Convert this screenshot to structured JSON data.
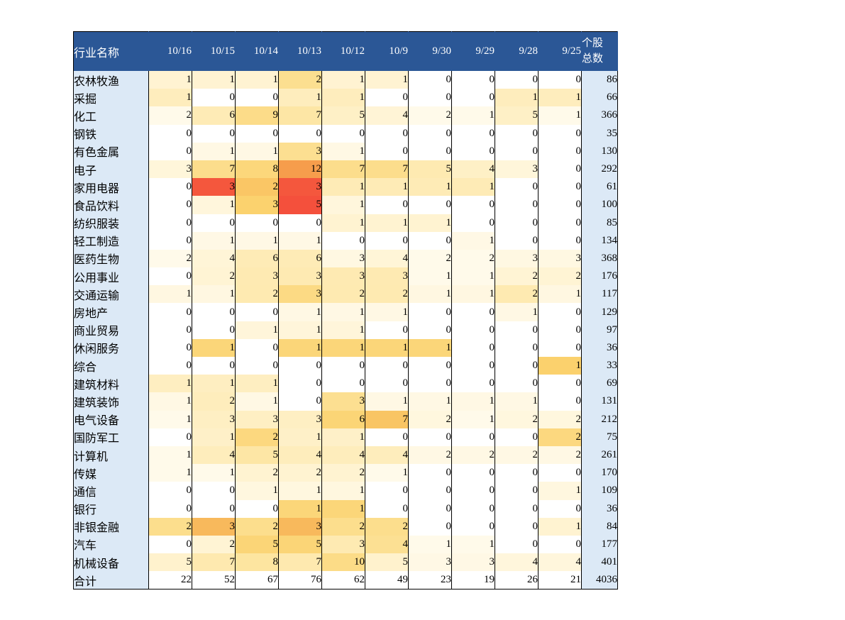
{
  "chart_data": {
    "type": "heatmap",
    "title": "",
    "header": {
      "industry": "行业名称",
      "dates": [
        "10/16",
        "10/15",
        "10/14",
        "10/13",
        "10/12",
        "10/9",
        "9/30",
        "9/29",
        "9/28",
        "9/25"
      ],
      "stock_total_line1": "个股",
      "stock_total_line2": "总数"
    },
    "rows": [
      {
        "name": "农林牧渔",
        "values": [
          1,
          1,
          1,
          2,
          1,
          1,
          0,
          0,
          0,
          0
        ],
        "total": 86
      },
      {
        "name": "采掘",
        "values": [
          1,
          0,
          0,
          1,
          1,
          0,
          0,
          0,
          1,
          1
        ],
        "total": 66
      },
      {
        "name": "化工",
        "values": [
          2,
          6,
          9,
          7,
          5,
          4,
          2,
          1,
          5,
          1
        ],
        "total": 366
      },
      {
        "name": "钢铁",
        "values": [
          0,
          0,
          0,
          0,
          0,
          0,
          0,
          0,
          0,
          0
        ],
        "total": 35
      },
      {
        "name": "有色金属",
        "values": [
          0,
          1,
          1,
          3,
          1,
          0,
          0,
          0,
          0,
          0
        ],
        "total": 130
      },
      {
        "name": "电子",
        "values": [
          3,
          7,
          8,
          12,
          7,
          7,
          5,
          4,
          3,
          0
        ],
        "total": 292
      },
      {
        "name": "家用电器",
        "values": [
          0,
          3,
          2,
          3,
          1,
          1,
          1,
          1,
          0,
          0
        ],
        "total": 61
      },
      {
        "name": "食品饮料",
        "values": [
          0,
          1,
          3,
          5,
          1,
          0,
          0,
          0,
          0,
          0
        ],
        "total": 100
      },
      {
        "name": "纺织服装",
        "values": [
          0,
          0,
          0,
          0,
          1,
          1,
          1,
          0,
          0,
          0
        ],
        "total": 85
      },
      {
        "name": "轻工制造",
        "values": [
          0,
          1,
          1,
          1,
          0,
          0,
          0,
          1,
          0,
          0
        ],
        "total": 134
      },
      {
        "name": "医药生物",
        "values": [
          2,
          4,
          6,
          6,
          3,
          4,
          2,
          2,
          3,
          3
        ],
        "total": 368
      },
      {
        "name": "公用事业",
        "values": [
          0,
          2,
          3,
          3,
          3,
          3,
          1,
          1,
          2,
          2
        ],
        "total": 176
      },
      {
        "name": "交通运输",
        "values": [
          1,
          1,
          2,
          3,
          2,
          2,
          1,
          1,
          2,
          1
        ],
        "total": 117
      },
      {
        "name": "房地产",
        "values": [
          0,
          0,
          0,
          1,
          1,
          1,
          0,
          0,
          1,
          0
        ],
        "total": 129
      },
      {
        "name": "商业贸易",
        "values": [
          0,
          0,
          1,
          1,
          1,
          0,
          0,
          0,
          0,
          0
        ],
        "total": 97
      },
      {
        "name": "休闲服务",
        "values": [
          0,
          1,
          0,
          1,
          1,
          1,
          1,
          0,
          0,
          0
        ],
        "total": 36
      },
      {
        "name": "综合",
        "values": [
          0,
          0,
          0,
          0,
          0,
          0,
          0,
          0,
          0,
          1
        ],
        "total": 33
      },
      {
        "name": "建筑材料",
        "values": [
          1,
          1,
          1,
          0,
          0,
          0,
          0,
          0,
          0,
          0
        ],
        "total": 69
      },
      {
        "name": "建筑装饰",
        "values": [
          1,
          2,
          1,
          0,
          3,
          1,
          1,
          1,
          1,
          0
        ],
        "total": 131
      },
      {
        "name": "电气设备",
        "values": [
          1,
          3,
          3,
          3,
          6,
          7,
          2,
          1,
          2,
          2
        ],
        "total": 212
      },
      {
        "name": "国防军工",
        "values": [
          0,
          1,
          2,
          1,
          1,
          0,
          0,
          0,
          0,
          2
        ],
        "total": 75
      },
      {
        "name": "计算机",
        "values": [
          1,
          4,
          5,
          4,
          4,
          4,
          2,
          2,
          2,
          2
        ],
        "total": 261
      },
      {
        "name": "传媒",
        "values": [
          1,
          1,
          2,
          2,
          2,
          1,
          0,
          0,
          0,
          0
        ],
        "total": 170
      },
      {
        "name": "通信",
        "values": [
          0,
          0,
          1,
          1,
          1,
          0,
          0,
          0,
          0,
          1
        ],
        "total": 109
      },
      {
        "name": "银行",
        "values": [
          0,
          0,
          0,
          1,
          1,
          0,
          0,
          0,
          0,
          0
        ],
        "total": 36
      },
      {
        "name": "非银金融",
        "values": [
          2,
          3,
          2,
          3,
          2,
          2,
          0,
          0,
          0,
          1
        ],
        "total": 84
      },
      {
        "name": "汽车",
        "values": [
          0,
          2,
          5,
          5,
          3,
          4,
          1,
          1,
          0,
          0
        ],
        "total": 177
      },
      {
        "name": "机械设备",
        "values": [
          5,
          7,
          8,
          7,
          10,
          5,
          3,
          3,
          4,
          4
        ],
        "total": 401
      }
    ],
    "footer_row": {
      "name": "合计",
      "values": [
        22,
        52,
        67,
        76,
        62,
        49,
        23,
        19,
        26,
        21
      ],
      "total": 4036
    },
    "color_scale": {
      "description": "cell fill intensity = value / industry stock total, white to yellow to orange to red",
      "max_ratio": 0.05,
      "stops": [
        "#FFFFFF",
        "#FFF6DC",
        "#FDE5A0",
        "#FBD26E",
        "#F6A74E",
        "#F4503C"
      ]
    },
    "layout": {
      "grid": "vertical black column separators, no horizontal row lines",
      "legend": "none"
    }
  },
  "colors": {
    "header_bg": "#2B5796",
    "header_text": "#FFFFFF",
    "label_col_bg": "#DCE9F6",
    "body_text": "#000000",
    "grid_line": "#000000",
    "zero_bg": "#FFFFFF",
    "page_bg": "#FFFFFF"
  }
}
